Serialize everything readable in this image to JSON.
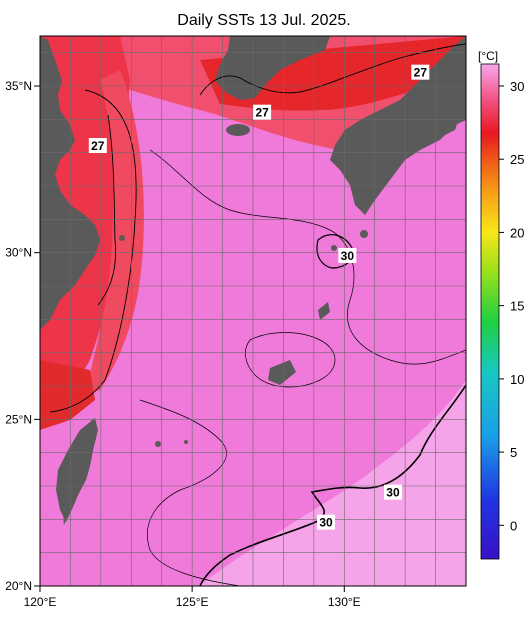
{
  "title": "Daily SSTs 13 Jul. 2025.",
  "axes": {
    "x_ticks": [
      {
        "value": 120,
        "label": "120°E"
      },
      {
        "value": 125,
        "label": "125°E"
      },
      {
        "value": 130,
        "label": "130°E"
      }
    ],
    "y_ticks": [
      {
        "value": 20,
        "label": "20°N"
      },
      {
        "value": 25,
        "label": "25°N"
      },
      {
        "value": 30,
        "label": "30°N"
      },
      {
        "value": 35,
        "label": "35°N"
      }
    ],
    "lon_range": [
      120,
      134
    ],
    "lat_range": [
      20,
      36.5
    ]
  },
  "colorbar": {
    "unit": "[°C]",
    "ticks": [
      "0",
      "5",
      "10",
      "15",
      "20",
      "25",
      "30"
    ]
  },
  "contour_labels": [
    {
      "text": "27",
      "lon": 121.9,
      "lat": 33.2
    },
    {
      "text": "27",
      "lon": 127.3,
      "lat": 34.2
    },
    {
      "text": "27",
      "lon": 132.5,
      "lat": 35.4
    },
    {
      "text": "30",
      "lon": 130.1,
      "lat": 29.9
    },
    {
      "text": "30",
      "lon": 131.6,
      "lat": 22.8
    },
    {
      "text": "30",
      "lon": 129.4,
      "lat": 21.9
    }
  ],
  "colors": {
    "warm_sea": "#f070d8",
    "mid_sea": "#f25a7a",
    "hot_coastal": "#e8262a",
    "land": "#5a5a5a",
    "light_sea": "#f6a6ec"
  }
}
